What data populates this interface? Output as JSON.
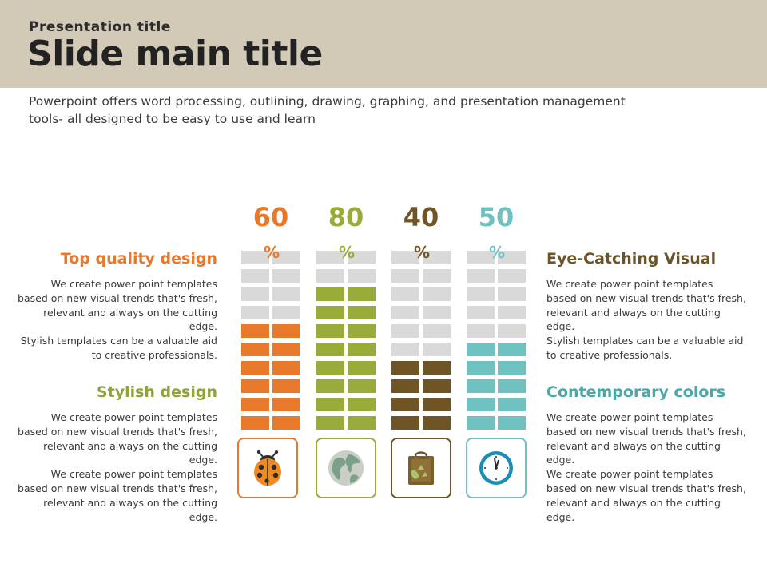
{
  "header": {
    "presentation_title": "Presentation title",
    "main_title": "Slide main title"
  },
  "intro_text_line1": "Powerpoint offers word processing, outlining, drawing, graphing, and presentation management",
  "intro_text_line2": "tools- all designed to be easy to use and learn",
  "left_sections": [
    {
      "heading": "Top quality design",
      "color": "#e8792b",
      "lines": [
        "We create power point templates",
        "based on new visual trends that's fresh,",
        "relevant and always on the cutting",
        "edge.",
        "Stylish templates can be a valuable aid",
        "to creative professionals."
      ]
    },
    {
      "heading": "Stylish design",
      "color": "#8ea43a",
      "lines": [
        "We create power point templates",
        "based on new visual trends that's fresh,",
        "relevant and always on the cutting",
        "edge.",
        "We create power point templates",
        "based on new visual trends that's fresh,",
        "relevant and always on the cutting",
        "edge."
      ]
    }
  ],
  "right_sections": [
    {
      "heading": "Eye-Catching Visual",
      "color": "#6b5428",
      "lines": [
        "We create power point templates",
        "based on new visual trends that's fresh,",
        "relevant and always on the cutting",
        "edge.",
        "Stylish templates can be a valuable aid",
        "to creative professionals."
      ]
    },
    {
      "heading": "Contemporary colors",
      "color": "#4aa8a6",
      "lines": [
        "We create power point templates",
        "based on new visual trends that's fresh,",
        "relevant and always on the cutting",
        "edge.",
        "We create power point templates",
        "based on new visual trends that's fresh,",
        "relevant and always on the cutting",
        "edge."
      ]
    }
  ],
  "chart_data": {
    "type": "bar",
    "segments_total": 10,
    "columns": [
      {
        "label": "60",
        "unit": "%",
        "value": 60,
        "color": "#e8792b",
        "icon": "ladybug-icon"
      },
      {
        "label": "80",
        "unit": "%",
        "value": 80,
        "color": "#99ac3a",
        "icon": "globe-icon"
      },
      {
        "label": "40",
        "unit": "%",
        "value": 40,
        "color": "#6f5525",
        "icon": "recycle-bag-icon"
      },
      {
        "label": "50",
        "unit": "%",
        "value": 50,
        "color": "#6fc2c0",
        "icon": "clock-icon"
      }
    ],
    "empty_color": "#d9d9d9"
  }
}
